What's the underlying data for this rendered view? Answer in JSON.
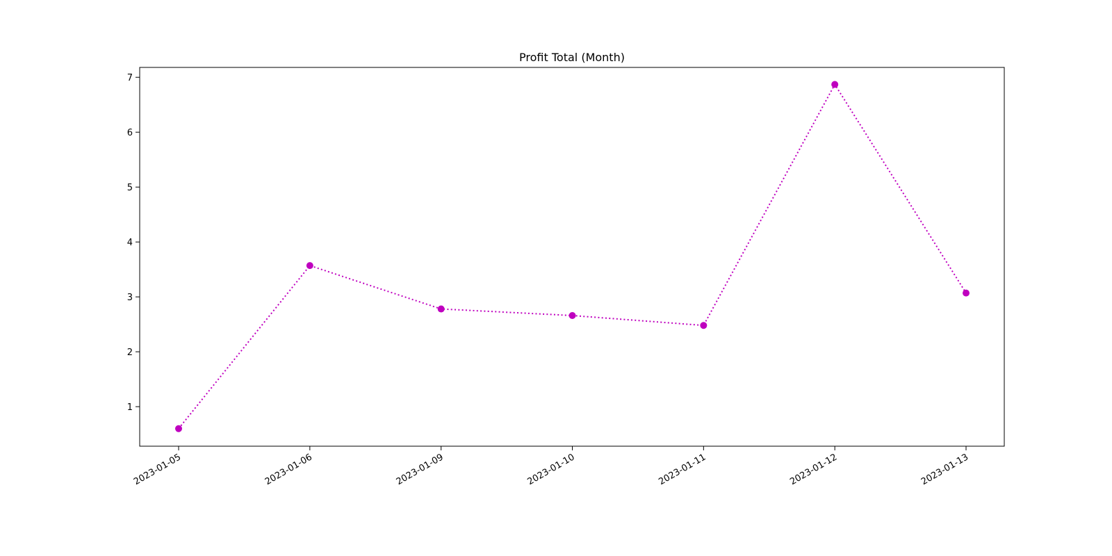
{
  "chart_data": {
    "type": "line",
    "title": "Profit Total (Month)",
    "xlabel": "",
    "ylabel": "",
    "categories": [
      "2023-01-05",
      "2023-01-06",
      "2023-01-09",
      "2023-01-10",
      "2023-01-11",
      "2023-01-12",
      "2023-01-13"
    ],
    "series": [
      {
        "values": [
          0.6,
          3.57,
          2.78,
          2.66,
          2.48,
          6.87,
          3.07
        ],
        "color": "#bf00bf",
        "line_style": "dotted",
        "marker": "circle"
      }
    ],
    "ylim": [
      0.28,
      7.18
    ],
    "yticks": [
      1,
      2,
      3,
      4,
      5,
      6,
      7
    ],
    "grid": false,
    "legend": "none"
  }
}
